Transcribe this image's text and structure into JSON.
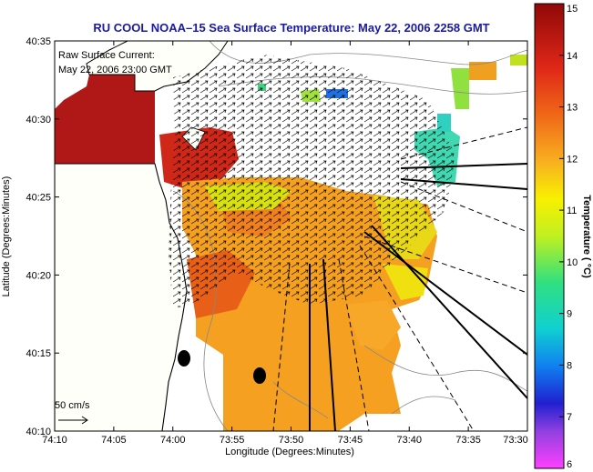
{
  "title": "RU COOL  NOAA–15  Sea Surface Temperature:  May 22, 2006 2258 GMT",
  "annotation": {
    "line1": "Raw Surface Current:",
    "line2": "May 22, 2006 23:00 GMT"
  },
  "scale_label": "50 cm/s",
  "axes": {
    "xlabel": "Longitude (Degrees:Minutes)",
    "ylabel": "Latitude (Degrees:Minutes)",
    "x_ticks": [
      "74:10",
      "74:05",
      "74:00",
      "73:55",
      "73:50",
      "73:45",
      "73:40",
      "73:35",
      "73:30"
    ],
    "y_ticks": [
      "40:35",
      "40:30",
      "40:25",
      "40:20",
      "40:15",
      "40:10"
    ]
  },
  "colorbar": {
    "label": "Temperature ( °C)",
    "ticks": [
      "15",
      "14",
      "13",
      "12",
      "11",
      "10",
      "9",
      "8",
      "7",
      "6"
    ],
    "range": [
      6,
      15
    ]
  },
  "colors": {
    "title": "#1a1aa0",
    "land": "#fffffa",
    "warm": "#f5a020",
    "hot": "#b01818"
  }
}
